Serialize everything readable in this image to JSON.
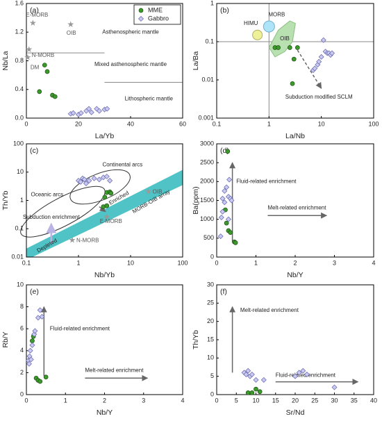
{
  "chart_data": [
    {
      "type": "scatter",
      "title": "(a)",
      "xlabel": "La/Yb",
      "ylabel": "Nb/La",
      "xlim": [
        0,
        60
      ],
      "xticks": [
        0,
        20,
        40,
        60
      ],
      "ylim": [
        0,
        1.6
      ],
      "yticks": [
        {
          "value": 0,
          "label": "0.0"
        },
        0.4,
        0.8,
        1.2,
        1.6
      ],
      "legend": "upper right",
      "series": [
        {
          "name": "MME",
          "color": "#3c9a2c",
          "marker": "circle",
          "x": [
            5,
            7,
            8,
            10,
            11
          ],
          "values": [
            0.37,
            0.74,
            0.65,
            0.32,
            0.3
          ]
        },
        {
          "name": "Gabbro",
          "color": "#c9c9f2",
          "marker": "diamond",
          "x": [
            17,
            18,
            20,
            21,
            23,
            24,
            25,
            27,
            28,
            30,
            31
          ],
          "values": [
            0.06,
            0.07,
            0.05,
            0.07,
            0.1,
            0.13,
            0.08,
            0.13,
            0.1,
            0.12,
            0.13
          ]
        }
      ],
      "reference_points": [
        {
          "name": "E-MORB",
          "x": 2.5,
          "y": 1.32
        },
        {
          "name": "OIB",
          "x": 17,
          "y": 1.3
        },
        {
          "name": "N-MORB",
          "x": 1,
          "y": 0.95
        },
        {
          "name": "DM",
          "x": 0.5,
          "y": 0.84
        }
      ],
      "annotations": [
        "Asthenospheric mantle",
        "Mixed asthenospheric mantle",
        "Lithospheric mantle"
      ]
    },
    {
      "type": "scatter",
      "title": "(b)",
      "xlabel": "La/Nb",
      "ylabel": "La/Ba",
      "xscale": "log",
      "yscale": "log",
      "xlim": [
        0.1,
        100
      ],
      "xticks": [
        0.1,
        1,
        10,
        100
      ],
      "ylim": [
        0.001,
        1
      ],
      "yticks": [
        0.001,
        0.01,
        0.1,
        1
      ],
      "series": [
        {
          "color": "#3c9a2c",
          "marker": "circle",
          "x": [
            1.3,
            1.5,
            2.5,
            3,
            3.5,
            2.8
          ],
          "values": [
            0.07,
            0.07,
            0.07,
            0.035,
            0.07,
            0.008
          ]
        },
        {
          "color": "#c9c9f2",
          "marker": "diamond",
          "x": [
            7,
            7.5,
            8.5,
            9,
            10,
            11,
            12,
            13,
            14,
            15,
            16
          ],
          "values": [
            0.018,
            0.02,
            0.025,
            0.03,
            0.04,
            0.11,
            0.055,
            0.05,
            0.05,
            0.045,
            0.05
          ]
        }
      ],
      "regions": [
        {
          "name": "HIMU",
          "color": "#eef09a"
        },
        {
          "name": "MORB",
          "color": "#aee4f8"
        },
        {
          "name": "OIB",
          "color": "#b8e0b0"
        }
      ],
      "annotations": [
        "Subduction modified SCLM"
      ]
    },
    {
      "type": "scatter",
      "title": "(c)",
      "xlabel": "Nb/Yb",
      "ylabel": "Th/Yb",
      "xscale": "log",
      "yscale": "log",
      "xlim": [
        0.1,
        100
      ],
      "xticks": [
        0.1,
        1,
        10,
        100
      ],
      "ylim": [
        0.01,
        100
      ],
      "yticks": [
        0.01,
        0.1,
        1,
        10,
        100
      ],
      "series": [
        {
          "color": "#3c9a2c",
          "marker": "circle",
          "x": [
            3,
            3.2,
            3.5,
            3.5,
            4,
            4.2
          ],
          "values": [
            0.6,
            1.3,
            0.65,
            1.9,
            2,
            1.8
          ]
        },
        {
          "color": "#c9c9f2",
          "marker": "diamond",
          "x": [
            1,
            1.1,
            1.2,
            1.3,
            1.4,
            1.6,
            2,
            2.5,
            3,
            3.5,
            4
          ],
          "values": [
            5,
            4.5,
            6,
            5.5,
            4,
            5,
            6,
            5.5,
            6.5,
            7,
            5
          ]
        }
      ],
      "reference_points": [
        {
          "name": "N-MORB",
          "x": 0.76,
          "y": 0.038
        },
        {
          "name": "E-MORB",
          "x": 3.5,
          "y": 0.25
        },
        {
          "name": "OIB",
          "x": 22,
          "y": 2
        }
      ],
      "regions": [
        {
          "name": "MORB-OIB array",
          "color": "#4fc3c6"
        }
      ],
      "annotations": [
        "Continental arcs",
        "Oceanic arcs",
        "Subduction enrichment",
        "Enriched",
        "Depleted"
      ]
    },
    {
      "type": "scatter",
      "title": "(d)",
      "xlabel": "Nb/Y",
      "ylabel": "Ba(ppm)",
      "xlim": [
        0,
        4
      ],
      "xticks": [
        0,
        1,
        2,
        3,
        4
      ],
      "ylim": [
        0,
        3000
      ],
      "yticks": [
        0,
        500,
        1000,
        1500,
        2000,
        2500,
        3000
      ],
      "series": [
        {
          "color": "#3c9a2c",
          "marker": "circle",
          "x": [
            0.22,
            0.25,
            0.3,
            0.35,
            0.45,
            0.48,
            0.28
          ],
          "values": [
            1250,
            900,
            700,
            650,
            400,
            380,
            2800
          ]
        },
        {
          "color": "#c9c9f2",
          "marker": "diamond",
          "x": [
            0.1,
            0.12,
            0.15,
            0.15,
            0.2,
            0.2,
            0.25,
            0.3,
            0.32,
            0.35,
            0.38,
            0.3
          ],
          "values": [
            550,
            1050,
            1200,
            1550,
            1750,
            1450,
            1850,
            1600,
            2050,
            1550,
            1500,
            1000
          ]
        }
      ],
      "annotations": [
        "Fluid-related enrichment",
        "Melt-related enrichment"
      ]
    },
    {
      "type": "scatter",
      "title": "(e)",
      "xlabel": "Nb/Y",
      "ylabel": "Rb/Y",
      "xlim": [
        0,
        4
      ],
      "xticks": [
        0,
        1,
        2,
        3,
        4
      ],
      "ylim": [
        0,
        10
      ],
      "yticks": [
        0,
        2,
        4,
        6,
        8,
        10
      ],
      "series": [
        {
          "color": "#3c9a2c",
          "marker": "circle",
          "x": [
            0.15,
            0.18,
            0.25,
            0.3,
            0.35,
            0.5
          ],
          "values": [
            4.9,
            5.3,
            1.5,
            1.3,
            1.2,
            1.6
          ]
        },
        {
          "color": "#c9c9f2",
          "marker": "diamond",
          "x": [
            0.05,
            0.07,
            0.08,
            0.1,
            0.12,
            0.15,
            0.2,
            0.22,
            0.3,
            0.35,
            0.4
          ],
          "values": [
            3.1,
            2.8,
            3.5,
            4,
            3.2,
            4.5,
            5.5,
            5.8,
            7,
            7.7,
            7.1
          ]
        }
      ],
      "annotations": [
        "Fluid-related enrichment",
        "Melt-related enrichment"
      ]
    },
    {
      "type": "scatter",
      "title": "(f)",
      "xlabel": "Sr/Nd",
      "ylabel": "Th/Yb",
      "xlim": [
        0,
        40
      ],
      "xticks": [
        0,
        5,
        10,
        15,
        20,
        25,
        30,
        35,
        40
      ],
      "ylim": [
        0,
        30
      ],
      "yticks": [
        0,
        5,
        10,
        15,
        20,
        25,
        30
      ],
      "series": [
        {
          "color": "#3c9a2c",
          "marker": "circle",
          "x": [
            8,
            9,
            10,
            11
          ],
          "values": [
            0.5,
            0.5,
            1.5,
            0.8
          ]
        },
        {
          "color": "#c9c9f2",
          "marker": "diamond",
          "x": [
            7,
            7.5,
            8,
            8.5,
            9,
            10,
            12,
            20,
            21,
            22,
            23,
            30
          ],
          "values": [
            6,
            5.5,
            6.5,
            5,
            5.5,
            4,
            4,
            5,
            6,
            6.5,
            5.5,
            2
          ]
        }
      ],
      "annotations": [
        "Melt-related enrichment",
        "Fluid-related enrichment"
      ]
    }
  ]
}
